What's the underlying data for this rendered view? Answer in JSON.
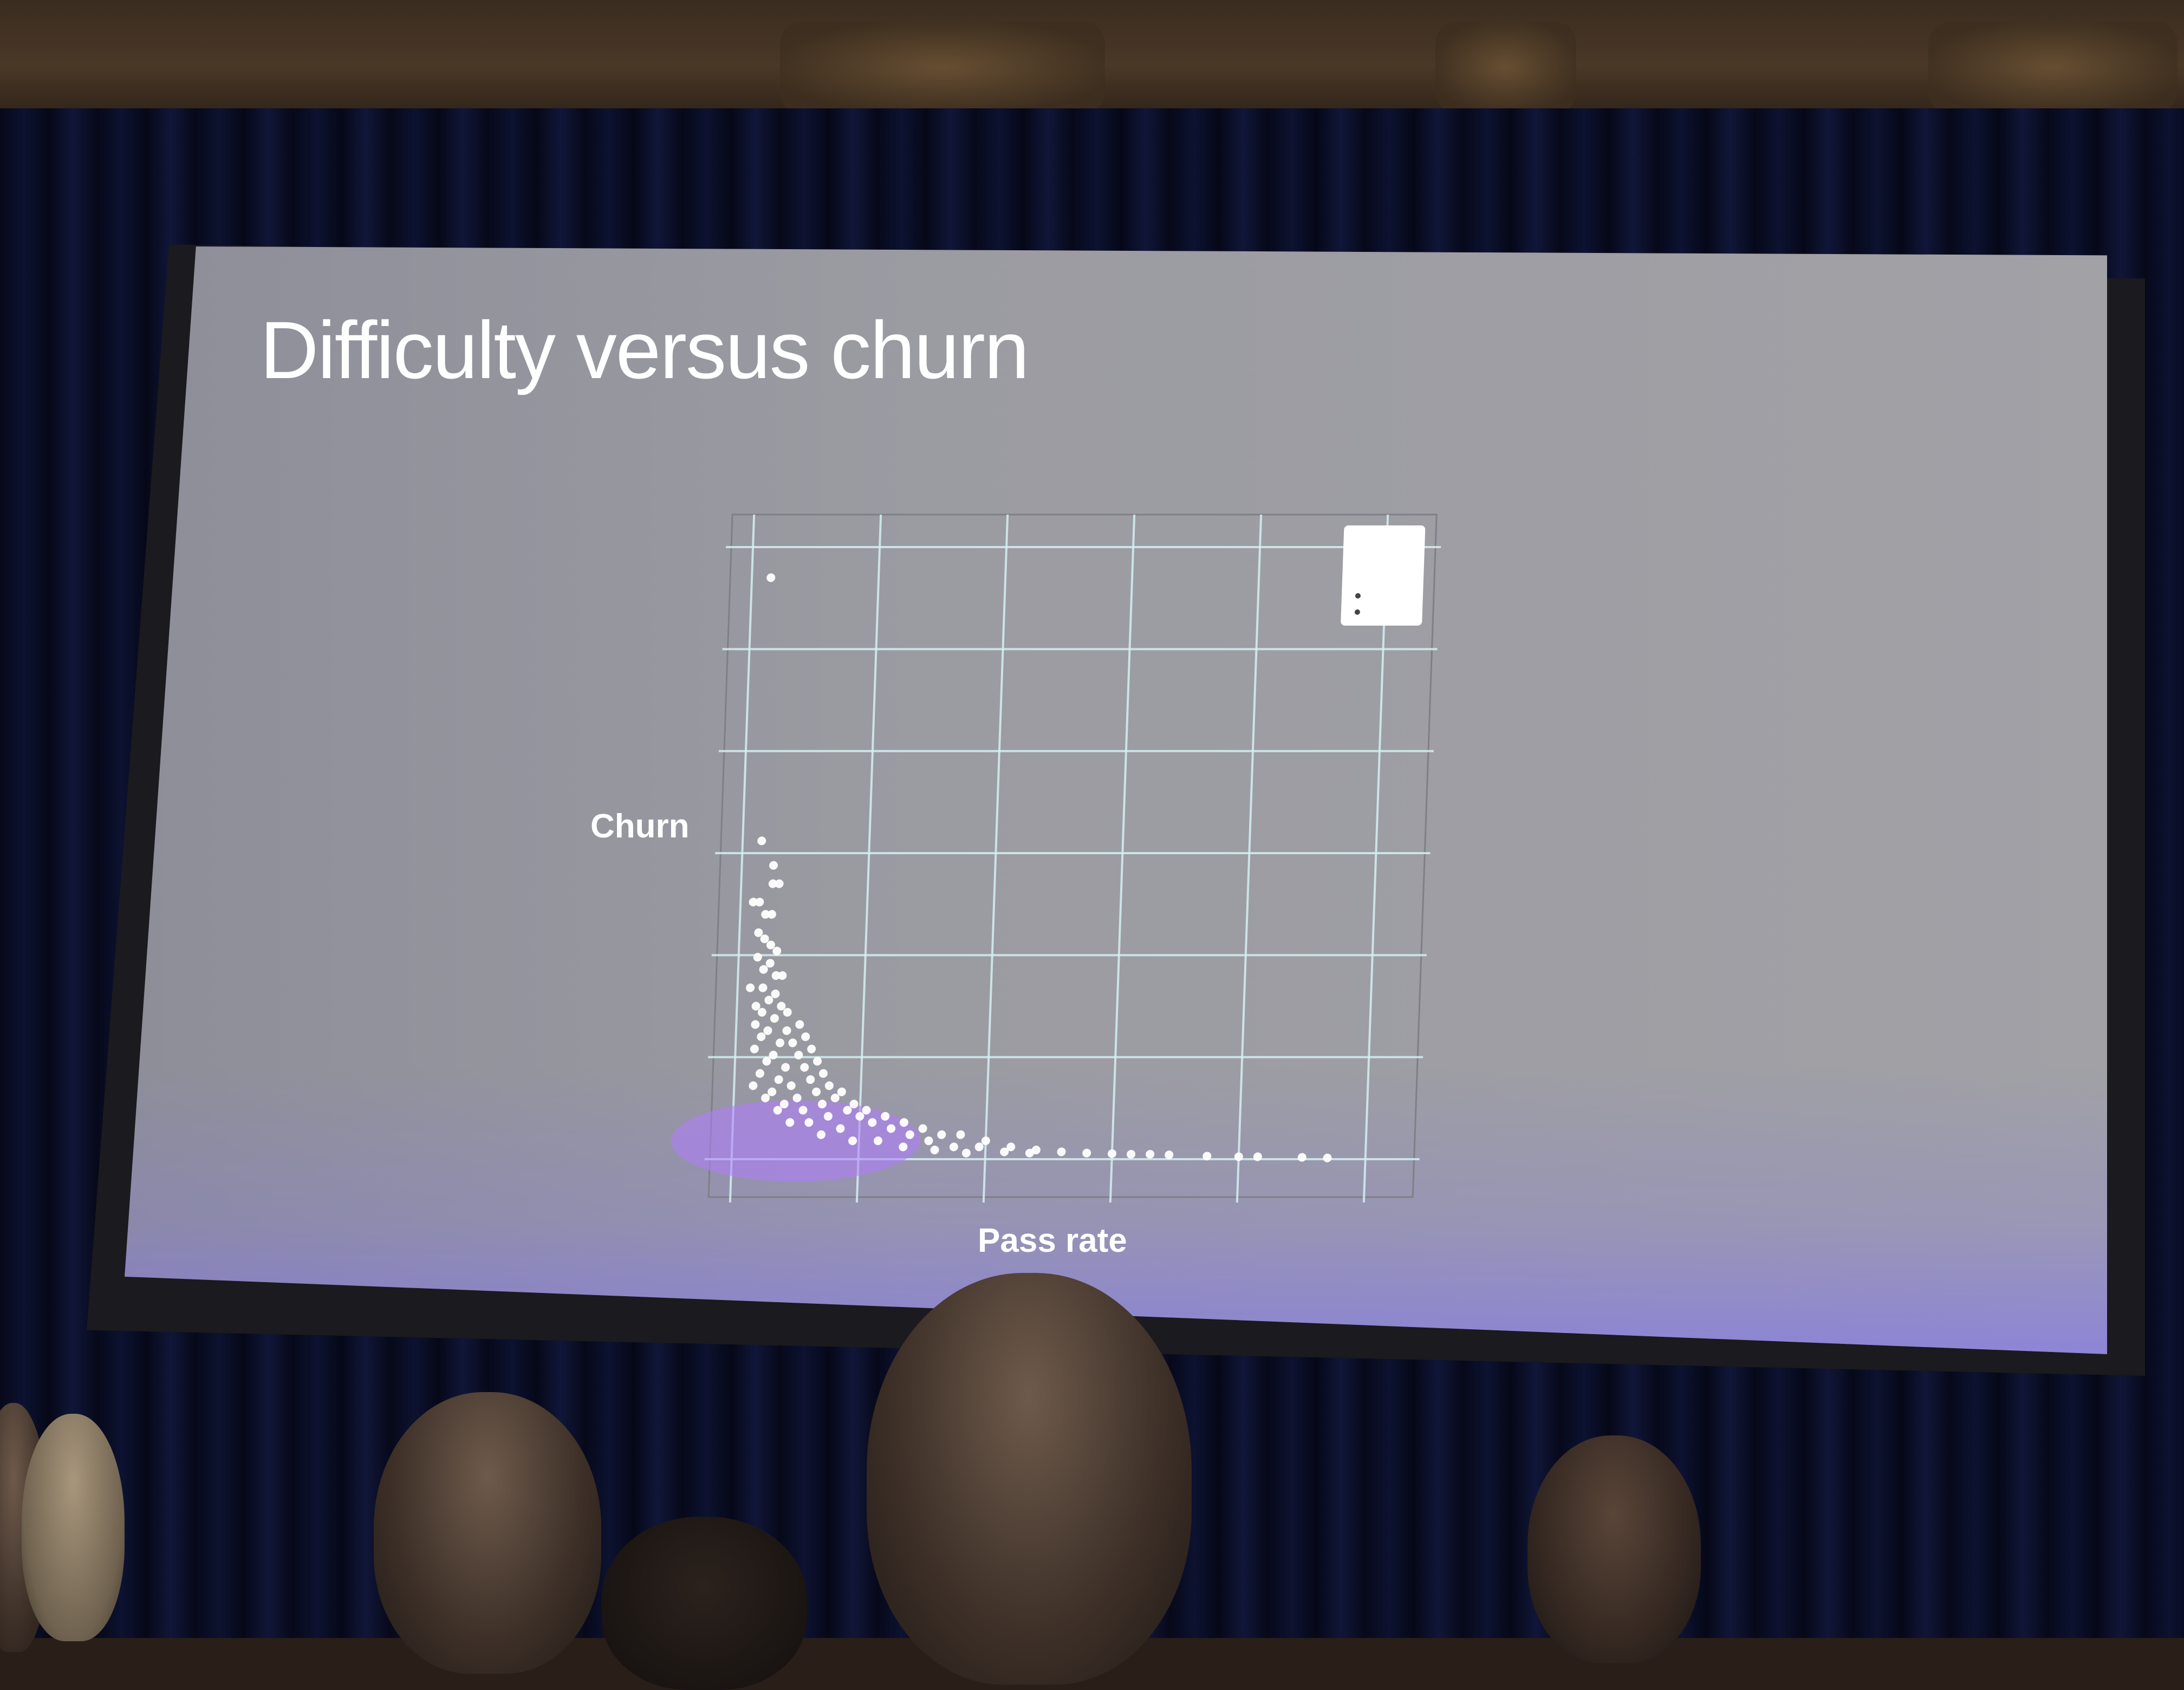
{
  "slide": {
    "title": "Difficulty versus churn"
  },
  "chart_data": {
    "type": "scatter",
    "title": "Difficulty versus churn",
    "xlabel": "Pass rate",
    "ylabel": "Churn",
    "grid": true,
    "point_color": "#ffffff",
    "density_color": "#b07cff",
    "points": [
      [
        0.03,
        0.95
      ],
      [
        0.03,
        0.52
      ],
      [
        0.05,
        0.48
      ],
      [
        0.05,
        0.45
      ],
      [
        0.06,
        0.45
      ],
      [
        0.02,
        0.42
      ],
      [
        0.03,
        0.42
      ],
      [
        0.04,
        0.4
      ],
      [
        0.05,
        0.4
      ],
      [
        0.03,
        0.37
      ],
      [
        0.04,
        0.36
      ],
      [
        0.05,
        0.35
      ],
      [
        0.06,
        0.34
      ],
      [
        0.03,
        0.33
      ],
      [
        0.05,
        0.32
      ],
      [
        0.04,
        0.31
      ],
      [
        0.06,
        0.3
      ],
      [
        0.07,
        0.3
      ],
      [
        0.02,
        0.28
      ],
      [
        0.04,
        0.28
      ],
      [
        0.06,
        0.27
      ],
      [
        0.05,
        0.26
      ],
      [
        0.03,
        0.25
      ],
      [
        0.07,
        0.25
      ],
      [
        0.08,
        0.24
      ],
      [
        0.04,
        0.24
      ],
      [
        0.06,
        0.23
      ],
      [
        0.1,
        0.22
      ],
      [
        0.03,
        0.22
      ],
      [
        0.05,
        0.21
      ],
      [
        0.08,
        0.21
      ],
      [
        0.11,
        0.2
      ],
      [
        0.04,
        0.2
      ],
      [
        0.07,
        0.19
      ],
      [
        0.09,
        0.19
      ],
      [
        0.12,
        0.18
      ],
      [
        0.03,
        0.18
      ],
      [
        0.06,
        0.17
      ],
      [
        0.1,
        0.17
      ],
      [
        0.13,
        0.16
      ],
      [
        0.05,
        0.16
      ],
      [
        0.08,
        0.15
      ],
      [
        0.11,
        0.15
      ],
      [
        0.14,
        0.14
      ],
      [
        0.04,
        0.14
      ],
      [
        0.07,
        0.13
      ],
      [
        0.12,
        0.13
      ],
      [
        0.15,
        0.12
      ],
      [
        0.03,
        0.12
      ],
      [
        0.09,
        0.12
      ],
      [
        0.13,
        0.11
      ],
      [
        0.17,
        0.11
      ],
      [
        0.06,
        0.11
      ],
      [
        0.1,
        0.1
      ],
      [
        0.16,
        0.1
      ],
      [
        0.19,
        0.09
      ],
      [
        0.05,
        0.1
      ],
      [
        0.08,
        0.09
      ],
      [
        0.14,
        0.09
      ],
      [
        0.21,
        0.08
      ],
      [
        0.11,
        0.08
      ],
      [
        0.18,
        0.08
      ],
      [
        0.24,
        0.07
      ],
      [
        0.07,
        0.08
      ],
      [
        0.15,
        0.07
      ],
      [
        0.2,
        0.07
      ],
      [
        0.27,
        0.06
      ],
      [
        0.12,
        0.06
      ],
      [
        0.22,
        0.06
      ],
      [
        0.3,
        0.05
      ],
      [
        0.09,
        0.06
      ],
      [
        0.17,
        0.05
      ],
      [
        0.25,
        0.05
      ],
      [
        0.33,
        0.04
      ],
      [
        0.14,
        0.04
      ],
      [
        0.28,
        0.04
      ],
      [
        0.36,
        0.04
      ],
      [
        0.19,
        0.03
      ],
      [
        0.31,
        0.03
      ],
      [
        0.4,
        0.03
      ],
      [
        0.23,
        0.03
      ],
      [
        0.35,
        0.02
      ],
      [
        0.44,
        0.02
      ],
      [
        0.27,
        0.02
      ],
      [
        0.39,
        0.02
      ],
      [
        0.48,
        0.015
      ],
      [
        0.32,
        0.015
      ],
      [
        0.43,
        0.012
      ],
      [
        0.52,
        0.012
      ],
      [
        0.37,
        0.01
      ],
      [
        0.47,
        0.01
      ],
      [
        0.56,
        0.01
      ],
      [
        0.6,
        0.009
      ],
      [
        0.63,
        0.008
      ],
      [
        0.66,
        0.008
      ],
      [
        0.69,
        0.007
      ],
      [
        0.75,
        0.005
      ],
      [
        0.8,
        0.004
      ],
      [
        0.83,
        0.004
      ],
      [
        0.9,
        0.003
      ],
      [
        0.94,
        0.002
      ]
    ],
    "legend": {
      "placement": "top-right",
      "entries": []
    }
  }
}
